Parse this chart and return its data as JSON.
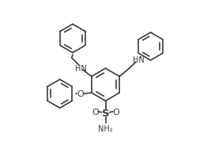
{
  "bg_color": "#ffffff",
  "line_color": "#3a3a3a",
  "line_width": 1.2,
  "font_size": 7.0,
  "xlim": [
    0,
    10
  ],
  "ylim": [
    0,
    8
  ]
}
